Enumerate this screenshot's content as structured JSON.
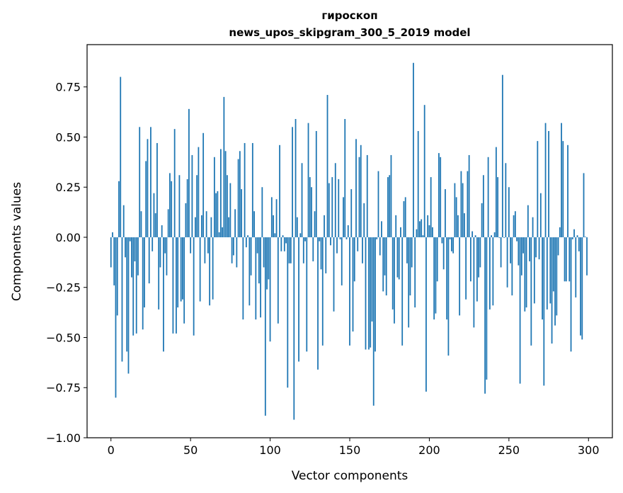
{
  "chart_data": {
    "type": "bar",
    "title": "гироскоп",
    "subtitle": "news_upos_skipgram_300_5_2019 model",
    "xlabel": "Vector components",
    "ylabel": "Components values",
    "xlim": [
      -15,
      315
    ],
    "ylim": [
      -1.0,
      0.961
    ],
    "xticks": [
      0,
      50,
      100,
      150,
      200,
      250,
      300
    ],
    "xtick_labels": [
      "0",
      "50",
      "100",
      "150",
      "200",
      "250",
      "300"
    ],
    "yticks": [
      -1.0,
      -0.75,
      -0.5,
      -0.25,
      0.0,
      0.25,
      0.5,
      0.75
    ],
    "ytick_labels": [
      "−1.00",
      "−0.75",
      "−0.50",
      "−0.25",
      "0.00",
      "0.25",
      "0.50",
      "0.75"
    ],
    "grid": false,
    "bar_color": "#1f77b4",
    "values": [
      -0.15,
      0.025,
      -0.24,
      -0.8,
      -0.39,
      0.28,
      0.8,
      -0.62,
      0.16,
      -0.1,
      -0.57,
      -0.68,
      -0.02,
      -0.2,
      -0.49,
      -0.12,
      -0.48,
      -0.19,
      0.55,
      0.13,
      -0.46,
      -0.35,
      0.38,
      0.49,
      -0.23,
      0.55,
      -0.07,
      0.22,
      0.12,
      0.47,
      -0.36,
      -0.15,
      0.06,
      -0.57,
      -0.08,
      -0.19,
      0.14,
      0.32,
      0.28,
      -0.48,
      0.54,
      -0.48,
      -0.35,
      0.31,
      -0.32,
      -0.31,
      -0.43,
      0.17,
      0.29,
      0.64,
      -0.08,
      0.41,
      -0.49,
      0.1,
      0.31,
      0.45,
      -0.32,
      0.11,
      0.52,
      -0.13,
      0.13,
      -0.08,
      -0.34,
      0.1,
      -0.31,
      0.4,
      0.22,
      0.23,
      0.025,
      0.44,
      0.05,
      0.7,
      0.43,
      0.31,
      0.1,
      0.27,
      -0.13,
      -0.09,
      0.14,
      -0.15,
      0.39,
      0.43,
      0.24,
      -0.41,
      0.47,
      -0.05,
      0.01,
      -0.34,
      -0.19,
      0.47,
      0.13,
      -0.41,
      -0.08,
      -0.23,
      -0.4,
      0.25,
      -0.15,
      -0.89,
      -0.26,
      -0.21,
      -0.52,
      0.2,
      0.11,
      0.02,
      0.19,
      -0.43,
      0.46,
      -0.07,
      0.01,
      -0.07,
      -0.03,
      -0.75,
      -0.13,
      -0.13,
      0.55,
      -0.91,
      0.59,
      0.1,
      -0.62,
      0.02,
      0.37,
      -0.13,
      -0.02,
      -0.57,
      0.57,
      0.3,
      0.25,
      -0.12,
      0.13,
      0.53,
      -0.66,
      -0.02,
      -0.16,
      -0.54,
      0.11,
      -0.18,
      0.71,
      0.27,
      -0.04,
      0.3,
      -0.37,
      0.37,
      -0.08,
      0.29,
      -0.01,
      -0.24,
      0.2,
      0.59,
      -0.01,
      0.06,
      -0.54,
      0.24,
      -0.47,
      -0.22,
      0.49,
      -0.07,
      0.4,
      0.46,
      -0.13,
      0.17,
      -0.56,
      0.41,
      -0.56,
      -0.55,
      -0.42,
      -0.84,
      -0.57,
      -0.01,
      0.33,
      -0.09,
      0.08,
      -0.27,
      -0.19,
      -0.29,
      0.3,
      0.31,
      0.41,
      -0.36,
      -0.43,
      0.11,
      -0.2,
      -0.21,
      0.05,
      -0.54,
      0.18,
      0.2,
      -0.13,
      -0.45,
      -0.29,
      -0.15,
      0.87,
      -0.35,
      0.04,
      0.53,
      0.08,
      0.09,
      0.01,
      0.66,
      -0.77,
      0.11,
      0.06,
      0.3,
      0.05,
      -0.41,
      -0.38,
      -0.22,
      0.42,
      0.4,
      -0.03,
      -0.16,
      0.24,
      -0.41,
      -0.59,
      -0.01,
      -0.07,
      -0.08,
      0.27,
      0.2,
      0.11,
      -0.39,
      0.33,
      0.27,
      0.12,
      -0.31,
      0.33,
      0.41,
      -0.22,
      0.03,
      -0.45,
      0.01,
      -0.32,
      -0.2,
      -0.15,
      0.17,
      0.31,
      -0.78,
      -0.71,
      0.4,
      -0.36,
      0.01,
      -0.34,
      0.025,
      0.45,
      0.3,
      -0.003,
      -0.15,
      0.81,
      -0.003,
      0.37,
      -0.25,
      0.25,
      -0.13,
      -0.29,
      0.11,
      0.13,
      -0.02,
      -0.14,
      -0.73,
      -0.19,
      -0.08,
      -0.37,
      -0.35,
      0.16,
      -0.12,
      -0.54,
      0.1,
      -0.33,
      -0.1,
      0.48,
      -0.11,
      0.22,
      -0.41,
      -0.74,
      0.57,
      -0.36,
      0.53,
      -0.33,
      -0.53,
      -0.27,
      -0.44,
      -0.39,
      -0.09,
      0.05,
      0.57,
      0.48,
      -0.22,
      -0.22,
      0.46,
      -0.22,
      -0.57,
      -0.01,
      0.04,
      -0.3,
      0.01,
      -0.07,
      -0.49,
      -0.51,
      0.32,
      0.003,
      -0.19
    ]
  }
}
